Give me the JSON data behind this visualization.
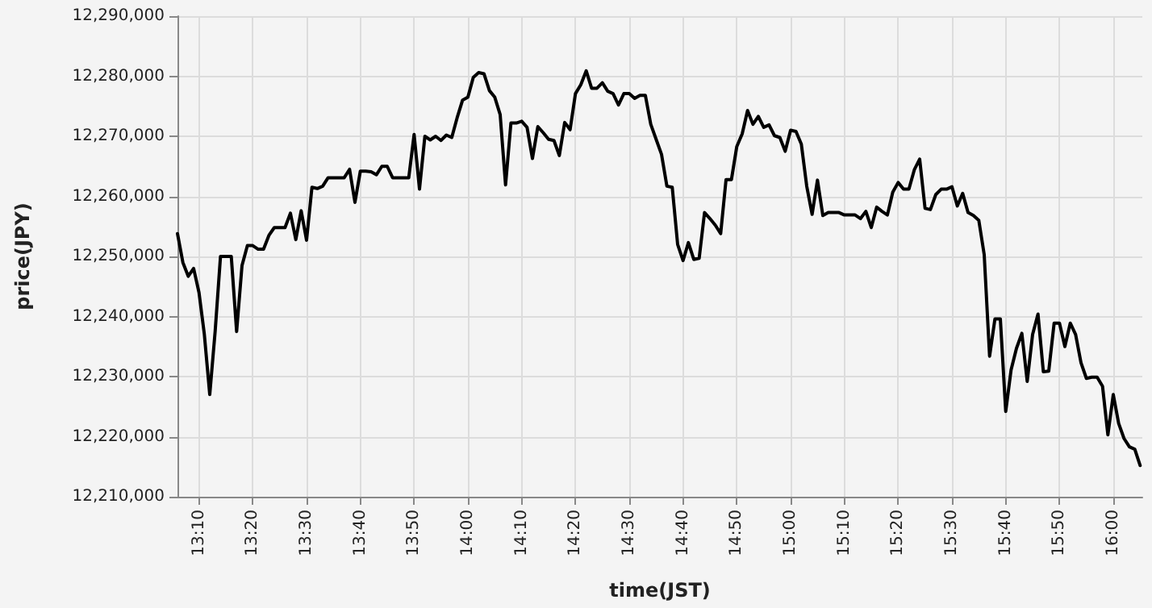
{
  "chart_data": {
    "type": "line",
    "xlabel": "time(JST)",
    "ylabel": "price(JPY)",
    "x": [
      13.1,
      13.1167,
      13.1333,
      13.15,
      13.1667,
      13.1833,
      13.2,
      13.2167,
      13.2333,
      13.25,
      13.2667,
      13.2833,
      13.3,
      13.3167,
      13.3333,
      13.35,
      13.3667,
      13.3833,
      13.4,
      13.4167,
      13.4333,
      13.45,
      13.4667,
      13.4833,
      13.5,
      13.5167,
      13.5333,
      13.55,
      13.5667,
      13.5833,
      13.6,
      13.6167,
      13.6333,
      13.65,
      13.6667,
      13.6833,
      13.7,
      13.7167,
      13.7333,
      13.75,
      13.7667,
      13.7833,
      13.8,
      13.8167,
      13.8333,
      13.85,
      13.8667,
      13.8833,
      13.9,
      13.9167,
      13.9333,
      13.95,
      13.9667,
      13.9833,
      14.0,
      14.0167,
      14.0333,
      14.05,
      14.0667,
      14.0833,
      14.1,
      14.1167,
      14.1333,
      14.15,
      14.1667,
      14.1833,
      14.2,
      14.2167,
      14.2333,
      14.25,
      14.2667,
      14.2833,
      14.3,
      14.3167,
      14.3333,
      14.35,
      14.3667,
      14.3833,
      14.4,
      14.4167,
      14.4333,
      14.45,
      14.4667,
      14.4833,
      14.5,
      14.5167,
      14.5333,
      14.55,
      14.5667,
      14.5833,
      14.6,
      14.6167,
      14.6333,
      14.65,
      14.6667,
      14.6833,
      14.7,
      14.7167,
      14.7333,
      14.75,
      14.7667,
      14.7833,
      14.8,
      14.8167,
      14.8333,
      14.85,
      14.8667,
      14.8833,
      14.9,
      14.9167,
      14.9333,
      14.95,
      14.9667,
      14.9833,
      15.0,
      15.0167,
      15.0333,
      15.05,
      15.0667,
      15.0833,
      15.1,
      15.1167,
      15.1333,
      15.15,
      15.1667,
      15.1833,
      15.2,
      15.2167,
      15.2333,
      15.25,
      15.2667,
      15.2833,
      15.3,
      15.3167,
      15.3333,
      15.35,
      15.3667,
      15.3833,
      15.4,
      15.4167,
      15.4333,
      15.45,
      15.4667,
      15.4833,
      15.5,
      15.5167,
      15.5333,
      15.55,
      15.5667,
      15.5833,
      15.6,
      15.6167,
      15.6333,
      15.65,
      15.6667,
      15.6833,
      15.7,
      15.7167,
      15.7333,
      15.75,
      15.7667,
      15.7833,
      15.8,
      15.8167,
      15.8333,
      15.85,
      15.8667,
      15.8833,
      15.9,
      15.9167,
      15.9333,
      15.95,
      15.9667,
      15.9833,
      16.0,
      16.0167,
      16.0333,
      16.05,
      16.0667,
      16.0833
    ],
    "series": [
      {
        "color": "#000000",
        "values": [
          12253800,
          12249000,
          12246700,
          12248000,
          12244000,
          12237000,
          12227000,
          12237500,
          12250000,
          12250000,
          12250000,
          12237500,
          12248500,
          12251800,
          12251800,
          12251200,
          12251200,
          12253500,
          12254800,
          12254800,
          12254800,
          12257200,
          12252800,
          12257600,
          12252700,
          12261500,
          12261300,
          12261700,
          12263100,
          12263100,
          12263100,
          12263100,
          12264500,
          12259000,
          12264200,
          12264200,
          12264100,
          12263600,
          12265000,
          12265000,
          12263100,
          12263100,
          12263100,
          12263100,
          12270300,
          12261200,
          12270000,
          12269400,
          12270000,
          12269300,
          12270200,
          12269800,
          12273100,
          12276000,
          12276500,
          12279800,
          12280600,
          12280400,
          12277600,
          12276500,
          12273600,
          12261900,
          12272200,
          12272200,
          12272500,
          12271500,
          12266300,
          12271600,
          12270600,
          12269500,
          12269300,
          12266800,
          12272300,
          12271100,
          12277100,
          12278600,
          12280900,
          12278000,
          12278000,
          12278900,
          12277500,
          12277100,
          12275200,
          12277100,
          12277100,
          12276300,
          12276800,
          12276800,
          12272000,
          12269500,
          12267000,
          12261700,
          12261500,
          12252000,
          12249300,
          12252300,
          12249500,
          12249700,
          12257300,
          12256300,
          12255200,
          12253800,
          12262800,
          12262800,
          12268300,
          12270400,
          12274300,
          12272000,
          12273300,
          12271500,
          12271900,
          12270100,
          12269800,
          12267500,
          12271000,
          12270800,
          12268700,
          12261700,
          12257000,
          12262700,
          12256800,
          12257300,
          12257300,
          12257300,
          12256900,
          12256900,
          12256900,
          12256300,
          12257500,
          12254800,
          12258200,
          12257500,
          12256900,
          12260700,
          12262300,
          12261200,
          12261200,
          12264400,
          12266200,
          12258000,
          12257800,
          12260300,
          12261200,
          12261200,
          12261600,
          12258400,
          12260500,
          12257300,
          12256800,
          12256000,
          12250300,
          12233400,
          12239600,
          12239600,
          12224200,
          12231100,
          12234700,
          12237200,
          12229200,
          12237000,
          12240400,
          12230800,
          12230900,
          12238900,
          12238900,
          12235000,
          12238900,
          12237000,
          12232300,
          12229700,
          12229900,
          12229900,
          12228400,
          12220300,
          12227000,
          12222200,
          12219700,
          12218300,
          12217900,
          12215200
        ]
      }
    ],
    "xlim": [
      13.1,
      16.09
    ],
    "xticks": [
      {
        "value": 13.1667,
        "label": "13:10"
      },
      {
        "value": 13.3333,
        "label": "13:20"
      },
      {
        "value": 13.5,
        "label": "13:30"
      },
      {
        "value": 13.6667,
        "label": "13:40"
      },
      {
        "value": 13.8333,
        "label": "13:50"
      },
      {
        "value": 14.0,
        "label": "14:00"
      },
      {
        "value": 14.1667,
        "label": "14:10"
      },
      {
        "value": 14.3333,
        "label": "14:20"
      },
      {
        "value": 14.5,
        "label": "14:30"
      },
      {
        "value": 14.6667,
        "label": "14:40"
      },
      {
        "value": 14.8333,
        "label": "14:50"
      },
      {
        "value": 15.0,
        "label": "15:00"
      },
      {
        "value": 15.1667,
        "label": "15:10"
      },
      {
        "value": 15.3333,
        "label": "15:20"
      },
      {
        "value": 15.5,
        "label": "15:30"
      },
      {
        "value": 15.6667,
        "label": "15:40"
      },
      {
        "value": 15.8333,
        "label": "15:50"
      },
      {
        "value": 16.0,
        "label": "16:00"
      }
    ],
    "ylim": [
      12210000,
      12290000
    ],
    "yticks": [
      {
        "value": 12210000,
        "label": "12,210,000"
      },
      {
        "value": 12220000,
        "label": "12,220,000"
      },
      {
        "value": 12230000,
        "label": "12,230,000"
      },
      {
        "value": 12240000,
        "label": "12,240,000"
      },
      {
        "value": 12250000,
        "label": "12,250,000"
      },
      {
        "value": 12260000,
        "label": "12,260,000"
      },
      {
        "value": 12270000,
        "label": "12,270,000"
      },
      {
        "value": 12280000,
        "label": "12,280,000"
      },
      {
        "value": 12290000,
        "label": "12,290,000"
      }
    ],
    "grid": true,
    "legend": false,
    "marker": "none",
    "line_style": "solid"
  }
}
